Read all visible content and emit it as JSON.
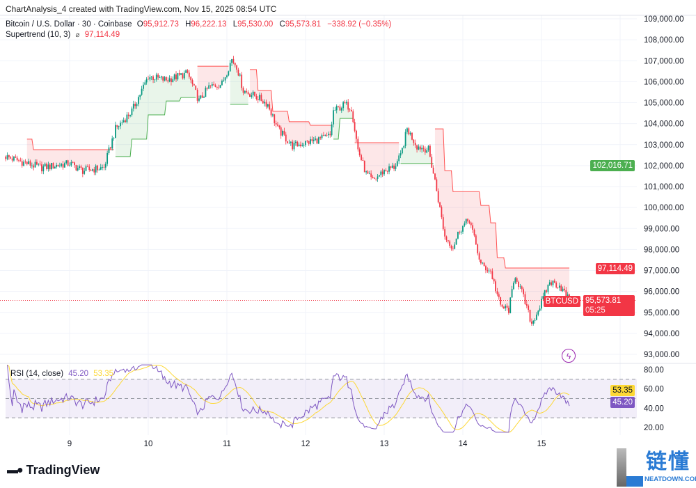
{
  "header": {
    "created_line": "ChartAnalysis_4 created with TradingView.com, Nov 15, 2025 08:54 UTC",
    "symbol": "Bitcoin / U.S. Dollar · 30 · Coinbase",
    "o_label": "O",
    "o": "95,912.73",
    "h_label": "H",
    "h": "96,222.13",
    "l_label": "L",
    "l": "95,530.00",
    "c_label": "C",
    "c": "95,573.81",
    "change": "−338.92 (−0.35%)",
    "supertrend_label": "Supertrend (10, 3)",
    "supertrend_icon": "eye-off-icon",
    "supertrend_value": "97,114.49"
  },
  "rsi_legend": {
    "label": "RSI (14, close)",
    "rsi": "45.20",
    "ma": "53.35"
  },
  "price_tags": {
    "green": "102,016.71",
    "supertrend": "97,114.49",
    "symbol": "BTCUSD",
    "last": "95,573.81",
    "countdown": "05:25",
    "rsi_ma": "53.35",
    "rsi": "45.20"
  },
  "colors": {
    "up": "#089981",
    "down": "#f23645",
    "st_up": "#4caf50",
    "st_down": "#ff5252",
    "rsi": "#7e57c2",
    "rsi_ma": "#fdd835"
  },
  "branding": {
    "tv": "TradingView",
    "watermark": "链懂",
    "watermark_sub": "NEATDOWN.COM"
  },
  "chart_data": [
    {
      "type": "candlestick",
      "interval": "30",
      "ylim": [
        92500,
        109500
      ],
      "grid": true,
      "price_ticks": [
        "109,000.00",
        "108,000.00",
        "107,000.00",
        "106,000.00",
        "105,000.00",
        "104,000.00",
        "103,000.00",
        "102,000.00",
        "101,000.00",
        "100,000.00",
        "99,000.00",
        "98,000.00",
        "97,000.00",
        "96,000.00",
        "95,000.00",
        "94,000.00",
        "93,000.00"
      ],
      "time_ticks": [
        "9",
        "10",
        "11",
        "12",
        "13",
        "14",
        "15"
      ],
      "close_path": [
        [
          "2025-11-08T04:30",
          102430
        ],
        [
          "2025-11-08T11:00",
          102100
        ],
        [
          "2025-11-08T15:30",
          101900
        ],
        [
          "2025-11-09T00:00",
          102100
        ],
        [
          "2025-11-09T04:00",
          101760
        ],
        [
          "2025-11-09T10:30",
          101900
        ],
        [
          "2025-11-09T14:00",
          103750
        ],
        [
          "2025-11-09T19:00",
          104600
        ],
        [
          "2025-11-10T00:00",
          106250
        ],
        [
          "2025-11-10T05:30",
          106080
        ],
        [
          "2025-11-10T12:00",
          106400
        ],
        [
          "2025-11-10T15:30",
          105080
        ],
        [
          "2025-11-10T18:30",
          105740
        ],
        [
          "2025-11-10T22:30",
          105900
        ],
        [
          "2025-11-11T01:30",
          107070
        ],
        [
          "2025-11-11T03:00",
          106740
        ],
        [
          "2025-11-11T05:00",
          105580
        ],
        [
          "2025-11-11T09:30",
          105250
        ],
        [
          "2025-11-11T12:30",
          104920
        ],
        [
          "2025-11-11T15:30",
          103750
        ],
        [
          "2025-11-11T20:00",
          102930
        ],
        [
          "2025-11-12T00:00",
          103090
        ],
        [
          "2025-11-12T04:30",
          103260
        ],
        [
          "2025-11-12T07:30",
          103420
        ],
        [
          "2025-11-12T08:30",
          104590
        ],
        [
          "2025-11-12T12:00",
          104920
        ],
        [
          "2025-11-12T14:00",
          104750
        ],
        [
          "2025-11-12T16:00",
          102760
        ],
        [
          "2025-11-12T18:30",
          101600
        ],
        [
          "2025-11-12T20:30",
          101270
        ],
        [
          "2025-11-13T00:00",
          101760
        ],
        [
          "2025-11-13T03:00",
          101930
        ],
        [
          "2025-11-13T05:00",
          102430
        ],
        [
          "2025-11-13T07:00",
          103750
        ],
        [
          "2025-11-13T10:00",
          102930
        ],
        [
          "2025-11-13T13:30",
          102760
        ],
        [
          "2025-11-13T15:30",
          101270
        ],
        [
          "2025-11-13T18:30",
          98610
        ],
        [
          "2025-11-13T21:00",
          98110
        ],
        [
          "2025-11-13T23:00",
          98940
        ],
        [
          "2025-11-14T02:00",
          99440
        ],
        [
          "2025-11-14T05:30",
          97280
        ],
        [
          "2025-11-14T08:30",
          96950
        ],
        [
          "2025-11-14T11:30",
          95290
        ],
        [
          "2025-11-14T14:00",
          95120
        ],
        [
          "2025-11-14T16:00",
          96780
        ],
        [
          "2025-11-14T18:00",
          95950
        ],
        [
          "2025-11-14T21:00",
          94460
        ],
        [
          "2025-11-14T23:30",
          95290
        ],
        [
          "2025-11-15T02:30",
          96450
        ],
        [
          "2025-11-15T05:30",
          96290
        ],
        [
          "2025-11-15T08:30",
          95573.81
        ]
      ],
      "supertrend": [
        [
          "2025-11-08T11:00",
          103260,
          "down"
        ],
        [
          "2025-11-08T13:00",
          102760,
          "down"
        ],
        [
          "2025-11-09T14:00",
          102430,
          "up"
        ],
        [
          "2025-11-09T19:00",
          103260,
          "up"
        ],
        [
          "2025-11-10T00:00",
          104420,
          "up"
        ],
        [
          "2025-11-10T05:30",
          105080,
          "up"
        ],
        [
          "2025-11-10T10:00",
          105250,
          "up"
        ],
        [
          "2025-11-10T15:00",
          106740,
          "down"
        ],
        [
          "2025-11-11T01:00",
          104920,
          "up"
        ],
        [
          "2025-11-11T07:00",
          106580,
          "down"
        ],
        [
          "2025-11-11T09:30",
          105580,
          "down"
        ],
        [
          "2025-11-11T14:00",
          104590,
          "down"
        ],
        [
          "2025-11-11T19:00",
          104090,
          "down"
        ],
        [
          "2025-11-12T01:30",
          103920,
          "down"
        ],
        [
          "2025-11-12T08:30",
          103260,
          "up"
        ],
        [
          "2025-11-12T10:30",
          104250,
          "up"
        ],
        [
          "2025-11-12T15:00",
          103090,
          "down"
        ],
        [
          "2025-11-13T05:00",
          102100,
          "up"
        ],
        [
          "2025-11-13T15:30",
          103750,
          "down"
        ],
        [
          "2025-11-13T18:30",
          101760,
          "down"
        ],
        [
          "2025-11-13T21:00",
          100760,
          "down"
        ],
        [
          "2025-11-14T05:30",
          100100,
          "down"
        ],
        [
          "2025-11-14T08:30",
          99270,
          "down"
        ],
        [
          "2025-11-14T10:30",
          97610,
          "down"
        ],
        [
          "2025-11-14T13:00",
          97114.49,
          "down"
        ]
      ]
    },
    {
      "type": "line",
      "title": "RSI (14, close)",
      "ylim": [
        15,
        85
      ],
      "ticks": [
        "80.00",
        "60.00",
        "40.00",
        "20.00"
      ],
      "bands": [
        70,
        50,
        30
      ],
      "series": [
        {
          "name": "RSI",
          "last": 45.2
        },
        {
          "name": "MA",
          "last": 53.35
        }
      ]
    }
  ]
}
